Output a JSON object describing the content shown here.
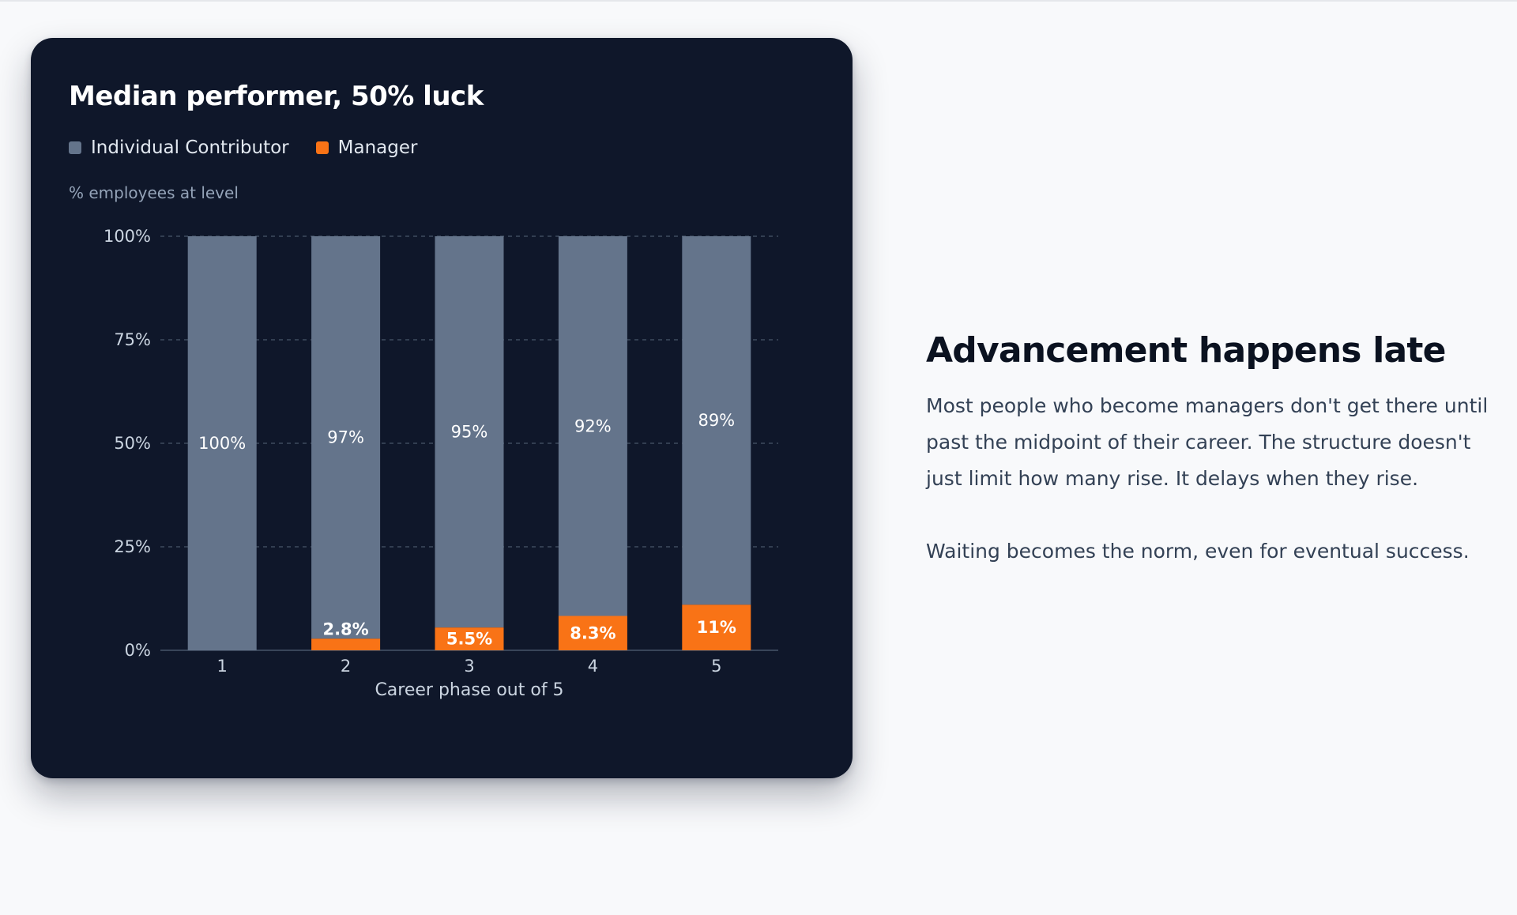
{
  "colors": {
    "ic": "#64748b",
    "manager": "#f97316",
    "grid": "#475569",
    "card": "#0f172a"
  },
  "chart_data": {
    "type": "bar",
    "stacked": true,
    "title": "Median performer, 50% luck",
    "ylabel": "% employees at level",
    "xlabel": "Career phase out of 5",
    "categories": [
      "1",
      "2",
      "3",
      "4",
      "5"
    ],
    "series": [
      {
        "name": "Individual Contributor",
        "values": [
          100,
          97.2,
          94.5,
          91.7,
          89
        ],
        "labels": [
          "100%",
          "97%",
          "95%",
          "92%",
          "89%"
        ]
      },
      {
        "name": "Manager",
        "values": [
          0,
          2.8,
          5.5,
          8.3,
          11
        ],
        "labels": [
          "",
          "2.8%",
          "5.5%",
          "8.3%",
          "11%"
        ]
      }
    ],
    "ylim": [
      0,
      100
    ],
    "yticks": [
      0,
      25,
      50,
      75,
      100
    ],
    "ytick_labels": [
      "0%",
      "25%",
      "50%",
      "75%",
      "100%"
    ],
    "grid": true,
    "legend_position": "top-left"
  },
  "side": {
    "heading": "Advancement happens late",
    "paragraphs": [
      "Most people who become managers don't get there until past the midpoint of their career. The structure doesn't just limit how many rise. It delays when they rise.",
      "Waiting becomes the norm, even for eventual success."
    ]
  }
}
